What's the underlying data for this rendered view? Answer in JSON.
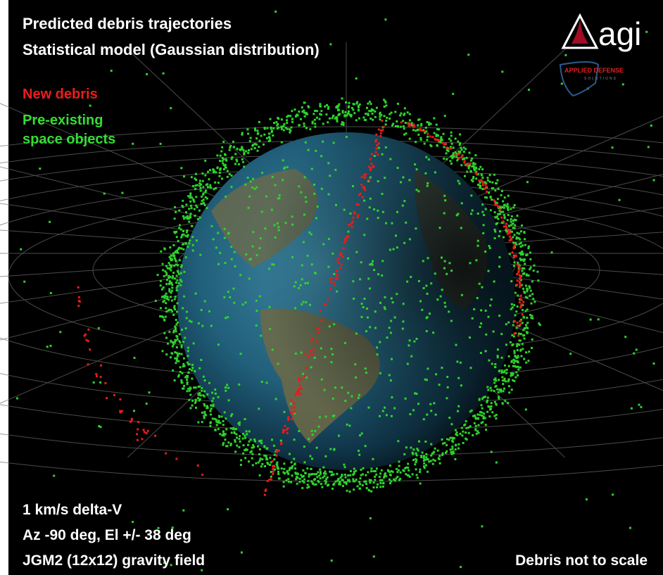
{
  "header": {
    "lines": [
      "Predicted debris trajectories",
      "Statistical model (Gaussian distribution)"
    ]
  },
  "legend": {
    "new_debris": "New debris",
    "pre_existing": [
      "Pre-existing",
      "space objects"
    ]
  },
  "parameters": [
    "1 km/s delta-V",
    "Az -90 deg, El +/- 38 deg",
    "JGM2 (12x12) gravity field"
  ],
  "note": "Debris not to scale",
  "logo": {
    "name": "agi",
    "partner": "APPLIED DEFENSE",
    "partner_sub": "SOLUTIONS"
  }
}
